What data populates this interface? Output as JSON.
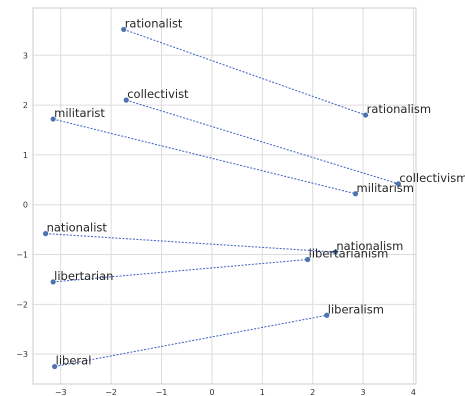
{
  "chart_data": {
    "type": "scatter",
    "title": "",
    "xlabel": "",
    "ylabel": "",
    "xlim": [
      -3.55,
      4.05
    ],
    "ylim": [
      -3.6,
      3.95
    ],
    "grid": true,
    "xticks": [
      -3,
      -2,
      -1,
      0,
      1,
      2,
      3,
      4
    ],
    "yticks": [
      -3,
      -2,
      -1,
      0,
      1,
      2,
      3
    ],
    "tick_labels_x": [
      "−3",
      "−2",
      "−1",
      "0",
      "1",
      "2",
      "3",
      "4"
    ],
    "tick_labels_y": [
      "−3",
      "−2",
      "−1",
      "0",
      "1",
      "2",
      "3"
    ],
    "point_color": "#4c72b0",
    "line_color": "#3b5fc4",
    "line_style": "dotted",
    "points": [
      {
        "label": "rationalist",
        "x": -1.75,
        "y": 3.52
      },
      {
        "label": "rationalism",
        "x": 3.05,
        "y": 1.8
      },
      {
        "label": "collectivist",
        "x": -1.7,
        "y": 2.1
      },
      {
        "label": "collectivism",
        "x": 3.7,
        "y": 0.42
      },
      {
        "label": "militarist",
        "x": -3.15,
        "y": 1.72
      },
      {
        "label": "militarism",
        "x": 2.85,
        "y": 0.22
      },
      {
        "label": "nationalist",
        "x": -3.3,
        "y": -0.58
      },
      {
        "label": "nationalism",
        "x": 2.45,
        "y": -0.95
      },
      {
        "label": "libertarian",
        "x": -3.15,
        "y": -1.55
      },
      {
        "label": "libertarianism",
        "x": 1.9,
        "y": -1.1
      },
      {
        "label": "liberal",
        "x": -3.12,
        "y": -3.25
      },
      {
        "label": "liberalism",
        "x": 2.28,
        "y": -2.22
      }
    ],
    "pairs": [
      [
        "rationalist",
        "rationalism"
      ],
      [
        "collectivist",
        "collectivism"
      ],
      [
        "militarist",
        "militarism"
      ],
      [
        "nationalist",
        "nationalism"
      ],
      [
        "libertarian",
        "libertarianism"
      ],
      [
        "liberal",
        "liberalism"
      ]
    ]
  }
}
